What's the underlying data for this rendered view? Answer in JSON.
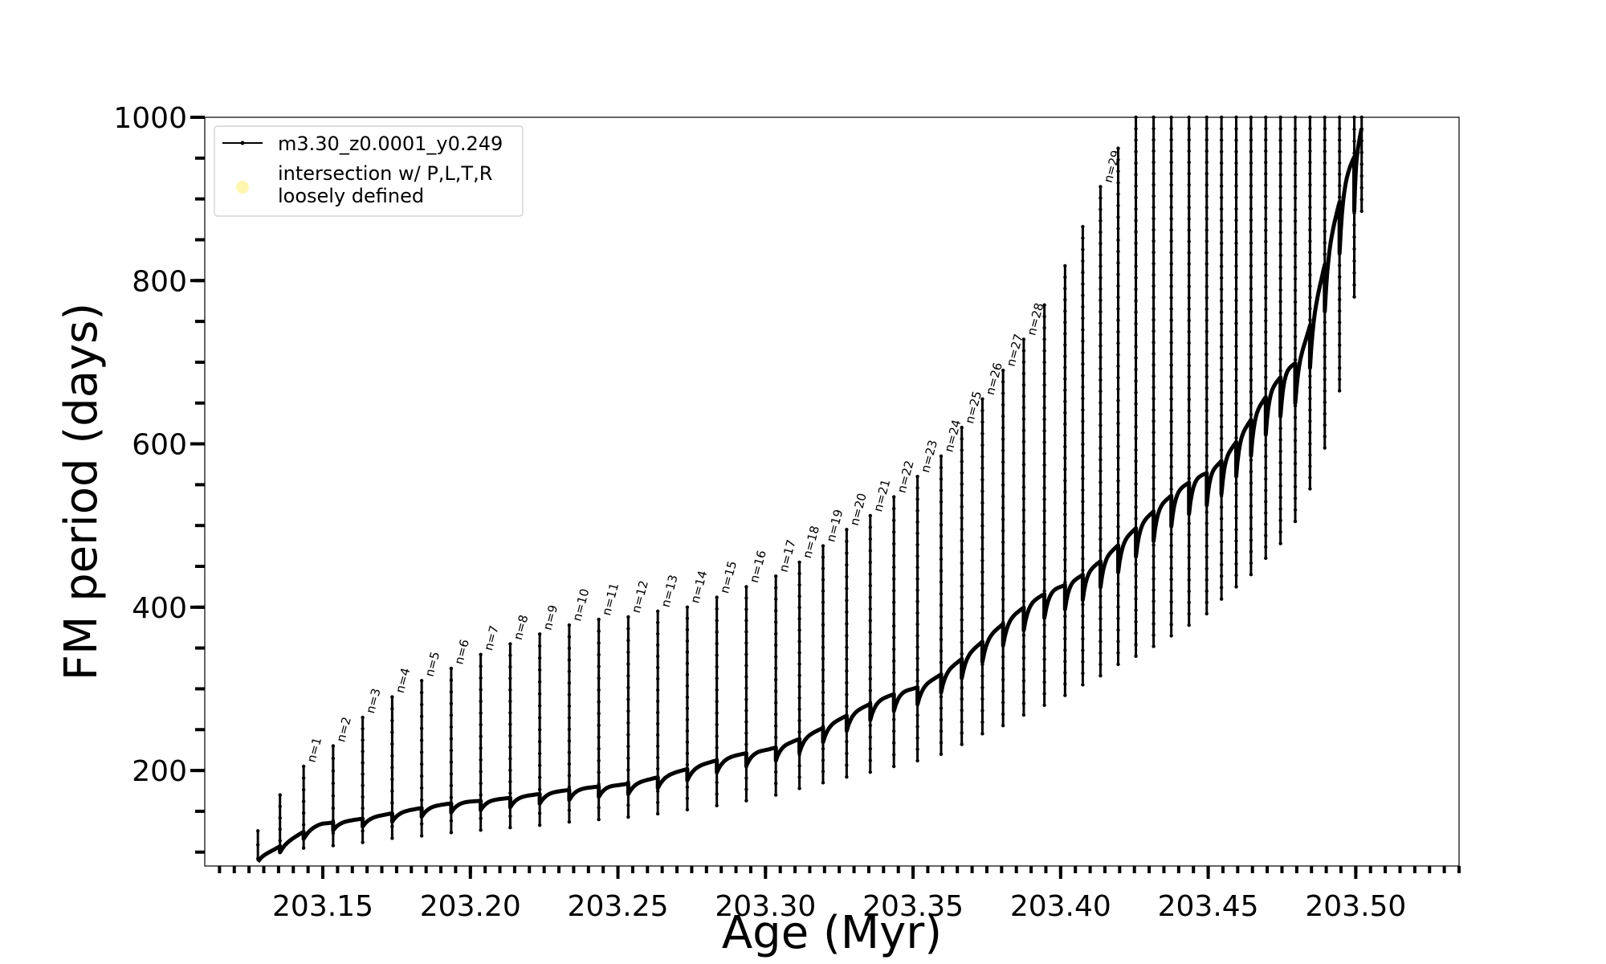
{
  "chart_data": {
    "type": "line",
    "xlabel": "Age (Myr)",
    "ylabel": "FM period (days)",
    "xlim": [
      203.11,
      203.535
    ],
    "ylim": [
      83,
      1000
    ],
    "x_ticks": [
      203.15,
      203.2,
      203.25,
      203.3,
      203.35,
      203.4,
      203.45,
      203.5
    ],
    "x_tick_labels": [
      "203.15",
      "203.20",
      "203.25",
      "203.30",
      "203.35",
      "203.40",
      "203.45",
      "203.50"
    ],
    "x_minor_tick_step": 0.005,
    "y_ticks": [
      200,
      400,
      600,
      800,
      1000
    ],
    "y_tick_labels": [
      "200",
      "400",
      "600",
      "800",
      "1000"
    ],
    "y_minor_tick_step": 50,
    "grid": false,
    "legend": {
      "position": "upper-left",
      "entries": [
        {
          "label": "m3.30_z0.0001_y0.249",
          "marker": "line-with-dots",
          "color": "#000000"
        },
        {
          "label": "intersection w/ P,L,T,R loosely defined",
          "label_lines": [
            "intersection w/ P,L,T,R",
            "loosely defined"
          ],
          "marker": "circle",
          "color": "#fff7b0"
        }
      ]
    },
    "series": [
      {
        "name": "m3.30_z0.0001_y0.249",
        "color": "#000000",
        "baseline_x": [
          203.128,
          203.15,
          203.2,
          203.25,
          203.3,
          203.35,
          203.4,
          203.45,
          203.48,
          203.5,
          203.503
        ],
        "baseline_y": [
          95,
          135,
          162,
          182,
          225,
          300,
          425,
          565,
          700,
          955,
          1000
        ],
        "pulses": [
          {
            "x": 203.128,
            "max": 126,
            "min": 92
          },
          {
            "x": 203.1355,
            "max": 170,
            "min": 100
          },
          {
            "x": 203.1435,
            "max": 205,
            "min": 105,
            "label": "n=1"
          },
          {
            "x": 203.1535,
            "max": 230,
            "min": 108,
            "label": "n=2"
          },
          {
            "x": 203.1635,
            "max": 265,
            "min": 112,
            "label": "n=3"
          },
          {
            "x": 203.1735,
            "max": 290,
            "min": 117,
            "label": "n=4"
          },
          {
            "x": 203.1835,
            "max": 310,
            "min": 120,
            "label": "n=5"
          },
          {
            "x": 203.1935,
            "max": 325,
            "min": 124,
            "label": "n=6"
          },
          {
            "x": 203.2035,
            "max": 342,
            "min": 127,
            "label": "n=7"
          },
          {
            "x": 203.2135,
            "max": 355,
            "min": 130,
            "label": "n=8"
          },
          {
            "x": 203.2235,
            "max": 367,
            "min": 133,
            "label": "n=9"
          },
          {
            "x": 203.2335,
            "max": 378,
            "min": 137,
            "label": "n=10"
          },
          {
            "x": 203.2435,
            "max": 385,
            "min": 140,
            "label": "n=11"
          },
          {
            "x": 203.2535,
            "max": 388,
            "min": 143,
            "label": "n=12"
          },
          {
            "x": 203.2635,
            "max": 395,
            "min": 147,
            "label": "n=13"
          },
          {
            "x": 203.2735,
            "max": 400,
            "min": 152,
            "label": "n=14"
          },
          {
            "x": 203.2835,
            "max": 412,
            "min": 157,
            "label": "n=15"
          },
          {
            "x": 203.2935,
            "max": 425,
            "min": 163,
            "label": "n=16"
          },
          {
            "x": 203.3035,
            "max": 438,
            "min": 170,
            "label": "n=17"
          },
          {
            "x": 203.3115,
            "max": 455,
            "min": 178,
            "label": "n=18"
          },
          {
            "x": 203.3195,
            "max": 475,
            "min": 185,
            "label": "n=19"
          },
          {
            "x": 203.3275,
            "max": 495,
            "min": 192,
            "label": "n=20"
          },
          {
            "x": 203.3355,
            "max": 512,
            "min": 198,
            "label": "n=21"
          },
          {
            "x": 203.3435,
            "max": 535,
            "min": 205,
            "label": "n=22"
          },
          {
            "x": 203.3515,
            "max": 560,
            "min": 212,
            "label": "n=23"
          },
          {
            "x": 203.3595,
            "max": 585,
            "min": 220,
            "label": "n=24"
          },
          {
            "x": 203.3665,
            "max": 620,
            "min": 232,
            "label": "n=25"
          },
          {
            "x": 203.3735,
            "max": 655,
            "min": 245,
            "label": "n=26"
          },
          {
            "x": 203.3805,
            "max": 690,
            "min": 255,
            "label": "n=27"
          },
          {
            "x": 203.3875,
            "max": 728,
            "min": 268,
            "label": "n=28"
          },
          {
            "x": 203.3945,
            "max": 770,
            "min": 280
          },
          {
            "x": 203.4015,
            "max": 818,
            "min": 292
          },
          {
            "x": 203.4075,
            "max": 866,
            "min": 305
          },
          {
            "x": 203.4135,
            "max": 915,
            "min": 316,
            "label": "n=29"
          },
          {
            "x": 203.4195,
            "max": 962,
            "min": 330
          },
          {
            "x": 203.4255,
            "max": 1000,
            "min": 340
          },
          {
            "x": 203.4315,
            "max": 1000,
            "min": 352
          },
          {
            "x": 203.4375,
            "max": 1000,
            "min": 365
          },
          {
            "x": 203.4435,
            "max": 1000,
            "min": 378
          },
          {
            "x": 203.4495,
            "max": 1000,
            "min": 392
          },
          {
            "x": 203.4545,
            "max": 1000,
            "min": 410
          },
          {
            "x": 203.4595,
            "max": 1000,
            "min": 425
          },
          {
            "x": 203.4645,
            "max": 1000,
            "min": 440
          },
          {
            "x": 203.4695,
            "max": 1000,
            "min": 460
          },
          {
            "x": 203.4745,
            "max": 1000,
            "min": 478
          },
          {
            "x": 203.4795,
            "max": 1000,
            "min": 505
          },
          {
            "x": 203.4845,
            "max": 1000,
            "min": 545
          },
          {
            "x": 203.4895,
            "max": 1000,
            "min": 595
          },
          {
            "x": 203.4945,
            "max": 1000,
            "min": 665
          },
          {
            "x": 203.4995,
            "max": 1000,
            "min": 780
          },
          {
            "x": 203.502,
            "max": 1000,
            "min": 885
          }
        ]
      }
    ]
  }
}
